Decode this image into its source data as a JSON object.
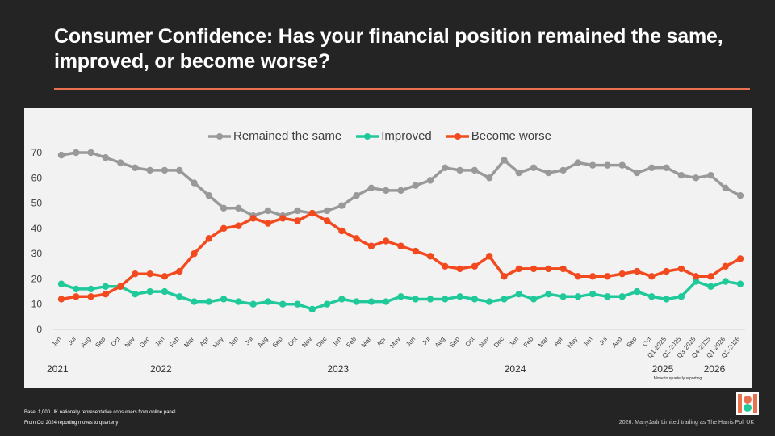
{
  "title": "Consumer Confidence: Has your financial position remained the same, improved, or become worse?",
  "footnotes": {
    "base": "Base: 1,000 UK nationally representative consumers from online panel",
    "reporting": "From Oct 2024 reporting moves to quarterly"
  },
  "copyright": "2026. ManyJadr Limited trading as The Harris Poll UK",
  "colors": {
    "background": "#242424",
    "accent_rule": "#e8714f",
    "panel": "#f2f2f2",
    "remained": "#999999",
    "improved": "#1fc99a",
    "worse": "#f24a1e"
  },
  "logo_icon": "harris-poll-logo-icon",
  "chart_data": {
    "type": "line",
    "title": "",
    "xlabel": "",
    "ylabel": "",
    "ylim": [
      0,
      70
    ],
    "yticks": [
      0,
      10,
      20,
      30,
      40,
      50,
      60,
      70
    ],
    "grid": false,
    "legend_position": "top-center",
    "categories": [
      "Jun",
      "Jul",
      "Aug",
      "Sep",
      "Oct",
      "Nov",
      "Dec",
      "Jan",
      "Feb",
      "Mar",
      "Apr",
      "May",
      "Jun",
      "Jul",
      "Aug",
      "Sep",
      "Oct",
      "Nov",
      "Dec",
      "Jan",
      "Feb",
      "Mar",
      "Apr",
      "May",
      "Jun",
      "Jul",
      "Aug",
      "Sep",
      "Oct",
      "Nov",
      "Dec",
      "Jan",
      "Feb",
      "Mar",
      "Apr",
      "May",
      "Jun",
      "Jul",
      "Aug",
      "Sep",
      "Oct",
      "Q1-2025",
      "Q2-2025",
      "Q3-2025",
      "Q4-2025",
      "Q1-2026",
      "Q2-2026"
    ],
    "years": [
      {
        "label": "2021",
        "index": 0
      },
      {
        "label": "2022",
        "index": 7
      },
      {
        "label": "2023",
        "index": 19
      },
      {
        "label": "2024",
        "index": 31
      },
      {
        "label": "2025",
        "index": 41
      },
      {
        "label": "2026",
        "index": 44.5
      }
    ],
    "annotation": "Move to quarterly reporting",
    "series": [
      {
        "name": "Remained the same",
        "color": "#999999",
        "values": [
          69,
          70,
          70,
          68,
          66,
          64,
          63,
          63,
          63,
          58,
          53,
          48,
          48,
          45,
          47,
          45,
          47,
          46,
          47,
          49,
          53,
          56,
          55,
          55,
          57,
          59,
          64,
          63,
          63,
          60,
          67,
          62,
          64,
          62,
          63,
          66,
          65,
          65,
          65,
          62,
          64,
          64,
          61,
          60,
          61,
          56,
          53
        ]
      },
      {
        "name": "Improved",
        "color": "#1fc99a",
        "values": [
          18,
          16,
          16,
          17,
          17,
          14,
          15,
          15,
          13,
          11,
          11,
          12,
          11,
          10,
          11,
          10,
          10,
          8,
          10,
          12,
          11,
          11,
          11,
          13,
          12,
          12,
          12,
          13,
          12,
          11,
          12,
          14,
          12,
          14,
          13,
          13,
          14,
          13,
          13,
          15,
          13,
          12,
          13,
          19,
          17,
          19,
          18
        ]
      },
      {
        "name": "Become worse",
        "color": "#f24a1e",
        "values": [
          12,
          13,
          13,
          14,
          17,
          22,
          22,
          21,
          23,
          30,
          36,
          40,
          41,
          44,
          42,
          44,
          43,
          46,
          43,
          39,
          36,
          33,
          35,
          33,
          31,
          29,
          25,
          24,
          25,
          29,
          21,
          24,
          24,
          24,
          24,
          21,
          21,
          21,
          22,
          23,
          21,
          23,
          24,
          21,
          21,
          25,
          28
        ]
      }
    ]
  }
}
